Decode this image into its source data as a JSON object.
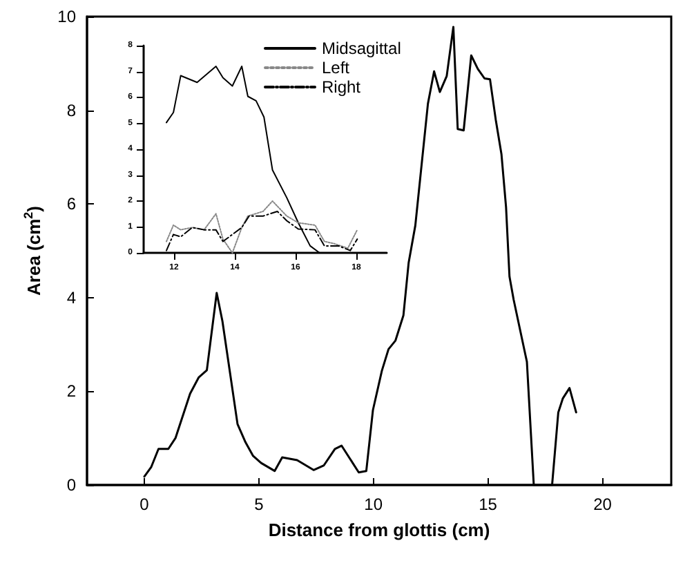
{
  "chart_data": [
    {
      "type": "line",
      "xlabel": "Distance from glottis (cm)",
      "ylabel": "Area (cm$^{2}$)",
      "xlim": [
        -2.5,
        23
      ],
      "ylim": [
        0,
        10
      ],
      "xticks": [
        0,
        5,
        10,
        15,
        20
      ],
      "yticks": [
        0,
        2,
        4,
        6,
        8,
        10
      ],
      "grid": false,
      "legend": false,
      "marker": "none",
      "line_style": "solid",
      "series": [
        {
          "color": "#000000",
          "x": [
            0,
            0.3,
            0.62,
            1.05,
            1.36,
            2.0,
            2.38,
            2.73,
            3.16,
            3.41,
            3.74,
            4.07,
            4.42,
            4.75,
            5.1,
            5.69,
            6.02,
            6.67,
            7.39,
            7.84,
            8.32,
            8.61,
            9.36,
            9.69,
            9.98,
            10.37,
            10.66,
            10.96,
            11.31,
            11.54,
            11.83,
            12.38,
            12.65,
            12.9,
            13.2,
            13.49,
            13.68,
            13.94,
            14.27,
            14.56,
            14.85,
            15.09,
            15.34,
            15.59,
            15.79,
            15.94,
            16.12,
            16.7,
            17.0,
            17.8,
            18.07,
            18.27,
            18.56,
            18.85
          ],
          "values": [
            0.18,
            0.38,
            0.77,
            0.77,
            1.0,
            1.95,
            2.3,
            2.45,
            4.1,
            3.5,
            2.4,
            1.3,
            0.91,
            0.62,
            0.47,
            0.3,
            0.59,
            0.53,
            0.32,
            0.42,
            0.77,
            0.84,
            0.27,
            0.3,
            1.6,
            2.44,
            2.9,
            3.08,
            3.62,
            4.75,
            5.54,
            8.14,
            8.83,
            8.39,
            8.73,
            9.78,
            7.6,
            7.57,
            9.17,
            8.88,
            8.68,
            8.66,
            7.8,
            7.06,
            5.93,
            4.45,
            3.96,
            2.63,
            0,
            0,
            1.55,
            1.85,
            2.07,
            1.55
          ]
        }
      ]
    },
    {
      "type": "line",
      "xlim": [
        11,
        19
      ],
      "ylim": [
        0,
        8
      ],
      "xticks": [
        12,
        14,
        16,
        18
      ],
      "yticks": [
        0,
        1,
        2,
        3,
        4,
        5,
        6,
        7,
        8
      ],
      "grid": false,
      "legend": "top right",
      "marker": "none",
      "series": [
        {
          "name": "Midsagittal",
          "color": "#000000",
          "line_style": "solid",
          "x": [
            11.75,
            11.98,
            12.22,
            12.76,
            13.38,
            13.61,
            13.92,
            14.23,
            14.43,
            14.7,
            14.96,
            15.24,
            15.71,
            16.09,
            16.48,
            16.79,
            17.8
          ],
          "values": [
            5.03,
            5.42,
            6.84,
            6.58,
            7.2,
            6.76,
            6.44,
            7.2,
            6.04,
            5.87,
            5.24,
            3.2,
            2.13,
            1.16,
            0.27,
            0,
            0
          ]
        },
        {
          "name": "Left",
          "color": "#888888",
          "line_style": "dotted",
          "x": [
            11.75,
            11.98,
            12.22,
            12.6,
            12.99,
            13.38,
            13.61,
            13.92,
            14.23,
            14.43,
            14.93,
            15.24,
            15.71,
            16.09,
            16.64,
            16.95,
            17.26,
            17.72,
            18.03
          ],
          "values": [
            0.44,
            1.07,
            0.89,
            0.98,
            0.89,
            1.51,
            0.53,
            0,
            0.98,
            1.42,
            1.6,
            2.0,
            1.42,
            1.16,
            1.07,
            0.44,
            0.36,
            0.18,
            0.89
          ]
        },
        {
          "name": "Right",
          "color": "#000000",
          "line_style": "dashed",
          "x": [
            11.75,
            11.98,
            12.22,
            12.6,
            12.99,
            13.38,
            13.61,
            13.92,
            14.23,
            14.47,
            14.93,
            15.4,
            15.71,
            16.09,
            16.64,
            16.95,
            17.41,
            17.8,
            18.03
          ],
          "values": [
            0.09,
            0.71,
            0.62,
            0.98,
            0.89,
            0.89,
            0.44,
            0.71,
            0.98,
            1.42,
            1.42,
            1.6,
            1.24,
            0.92,
            0.89,
            0.27,
            0.27,
            0.09,
            0.53
          ]
        }
      ]
    }
  ]
}
